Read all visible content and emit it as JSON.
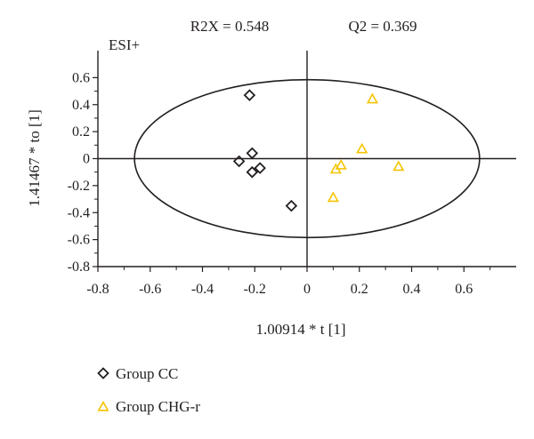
{
  "chart_data": {
    "type": "scatter",
    "title": "",
    "annotations": {
      "r2x": "R2X = 0.548",
      "q2": "Q2 = 0.369",
      "mode": "ESI+"
    },
    "xlabel": "1.00914 * t [1]",
    "ylabel": "1.41467 * to [1]",
    "xlim": [
      -0.8,
      0.8
    ],
    "ylim": [
      -0.8,
      0.8
    ],
    "x_ticks": [
      -0.8,
      -0.6,
      -0.4,
      -0.2,
      0,
      0.2,
      0.4,
      0.6
    ],
    "x_tick_labels": [
      "-0.8",
      "-0.6",
      "-0.4",
      "-0.2",
      "0",
      "0.2",
      "0.4",
      "0.6"
    ],
    "y_ticks": [
      0.6,
      0.4,
      0.2,
      0,
      -0.2,
      -0.4,
      -0.6,
      -0.8
    ],
    "y_tick_labels": [
      "0.6",
      "0.4",
      "0.2",
      "0",
      "-0.2",
      "-0.4",
      "-0.6",
      "-0.8"
    ],
    "grid": false,
    "legend_position": "bottom-left",
    "ellipse": {
      "cx": 0,
      "cy": 0,
      "rx": 0.66,
      "ry": 0.74
    },
    "series": [
      {
        "name": "Group CC",
        "marker": "diamond",
        "color": "#231f20",
        "points": [
          {
            "x": -0.22,
            "y": 0.47
          },
          {
            "x": -0.21,
            "y": 0.04
          },
          {
            "x": -0.26,
            "y": -0.02
          },
          {
            "x": -0.18,
            "y": -0.07
          },
          {
            "x": -0.21,
            "y": -0.1
          },
          {
            "x": -0.06,
            "y": -0.35
          }
        ]
      },
      {
        "name": "Group CHG-r",
        "marker": "triangle",
        "color": "#f5c400",
        "points": [
          {
            "x": 0.25,
            "y": 0.44
          },
          {
            "x": 0.21,
            "y": 0.07
          },
          {
            "x": 0.13,
            "y": -0.05
          },
          {
            "x": 0.11,
            "y": -0.08
          },
          {
            "x": 0.35,
            "y": -0.06
          },
          {
            "x": 0.1,
            "y": -0.29
          }
        ]
      }
    ]
  }
}
